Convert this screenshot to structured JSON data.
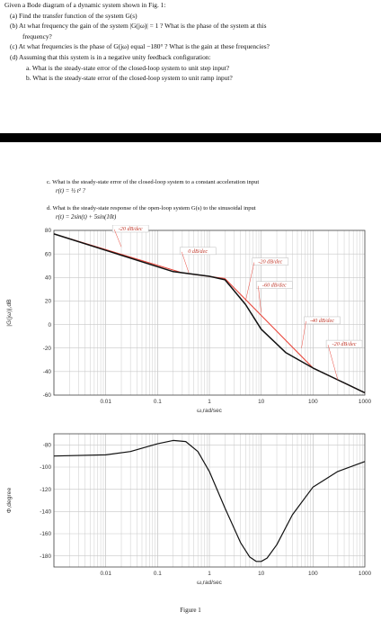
{
  "questions": {
    "intro": "Given a Bode diagram of a dynamic system shown in Fig. 1:",
    "a": "(a) Find the transfer function of the system G(s)",
    "b_line1": "(b) At what frequency the gain of the system |G(jω)| = 1 ? What is the phase of the system at this",
    "b_line2": "frequency?",
    "c": "(c) At what frequencies is the phase of G(jω) equal −180° ? What is the gain at these frequencies?",
    "d": "(d) Assuming that this system is in a negative unity feedback configuration:",
    "d_a": "a.  What is the steady-state error of the closed-loop system to unit step input?",
    "d_b": "b.  What is the steady-state error of the closed-loop system to unit ramp input?",
    "d_c": "c.  What is the steady-state error of the closed-loop system to a constant acceleration input",
    "d_c_formula": "r(t) = ½ t² ?",
    "d_d": "d.  What is the steady-state response of the open-loop system G(s) to the sinusoidal input",
    "d_d_formula": "r(t) = 2sin(t) + 5sin(10t)"
  },
  "caption": "Figure 1",
  "colors": {
    "asymptote": "#e8473c",
    "response": "#111111"
  },
  "chart_data": [
    {
      "type": "line",
      "xscale": "log",
      "xlim": [
        0.001,
        1000
      ],
      "ylim": [
        -60,
        80
      ],
      "xlabel": "ω,rad/sec",
      "ylabel": "|G(jω)|,dB",
      "grid": true,
      "xticks": [
        "0.01",
        "0.1",
        "1",
        "10",
        "100",
        "1000"
      ],
      "yticks": [
        "80",
        "60",
        "40",
        "20",
        "0",
        "-20",
        "-40",
        "-60"
      ],
      "series": [
        {
          "x": [
            0.001,
            0.3,
            2,
            100,
            1000
          ],
          "y": [
            77,
            44,
            39,
            -37,
            -58
          ]
        },
        {
          "x": [
            0.001,
            0.2,
            1,
            2,
            5,
            10,
            30,
            100,
            300,
            1000
          ],
          "y": [
            77,
            45,
            41,
            38,
            17,
            -4,
            -24,
            -37,
            -47,
            -58
          ]
        }
      ],
      "annotations": [
        {
          "text": "-20 dB/dec",
          "x": 0.03,
          "y": 80
        },
        {
          "text": "0 dB/dec",
          "x": 0.6,
          "y": 61
        },
        {
          "text": "-20 dB/dec",
          "x": 15,
          "y": 52
        },
        {
          "text": "-60 dB/dec",
          "x": 18,
          "y": 32
        },
        {
          "text": "-40 dB/dec",
          "x": 150,
          "y": 2
        },
        {
          "text": "-20 dB/dec",
          "x": 400,
          "y": -18
        }
      ]
    },
    {
      "type": "line",
      "xscale": "log",
      "xlim": [
        0.001,
        1000
      ],
      "ylim": [
        -190,
        -70
      ],
      "xlabel": "ω,rad/sec",
      "ylabel": "Φ,degree",
      "grid": true,
      "xticks": [
        "0.01",
        "0.1",
        "1",
        "10",
        "100",
        "1000"
      ],
      "yticks": [
        "-80",
        "-100",
        "-120",
        "-140",
        "-160",
        "-180"
      ],
      "series": [
        {
          "x": [
            0.001,
            0.01,
            0.03,
            0.1,
            0.2,
            0.35,
            0.6,
            1,
            2,
            4,
            6,
            8,
            10,
            13,
            20,
            40,
            100,
            300,
            1000
          ],
          "y": [
            -90,
            -89,
            -86,
            -79,
            -76,
            -77,
            -86,
            -104,
            -137,
            -168,
            -181,
            -185,
            -185,
            -182,
            -170,
            -143,
            -118,
            -104,
            -95
          ]
        }
      ]
    }
  ]
}
